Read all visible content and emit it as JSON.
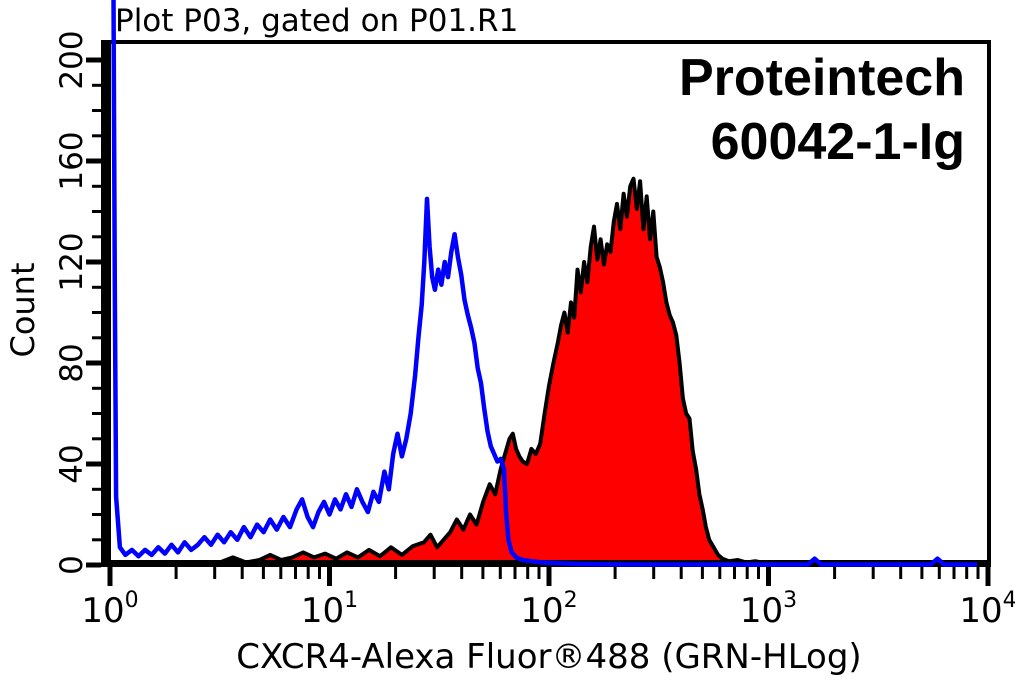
{
  "title": "Plot P03, gated on P01.R1",
  "annotation": {
    "line1": "Proteintech",
    "line2": "60042-1-Ig"
  },
  "chart_data": {
    "type": "area",
    "title": "Plot P03, gated on P01.R1",
    "xlabel": "CXCR4-Alexa Fluor®488 (GRN-HLog)",
    "ylabel": "Count",
    "x_scale": "log10",
    "xlim_log10": [
      0,
      4
    ],
    "ylim": [
      0,
      208
    ],
    "grid": "off",
    "legend": "none",
    "x_ticks": [
      {
        "base": "10",
        "exp": "0"
      },
      {
        "base": "10",
        "exp": "1"
      },
      {
        "base": "10",
        "exp": "2"
      },
      {
        "base": "10",
        "exp": "3"
      },
      {
        "base": "10",
        "exp": "4"
      }
    ],
    "y_ticks": [
      {
        "v": 0,
        "label": "0"
      },
      {
        "v": 40,
        "label": "40"
      },
      {
        "v": 80,
        "label": "80"
      },
      {
        "v": 120,
        "label": "120"
      },
      {
        "v": 160,
        "label": "160"
      },
      {
        "v": 200,
        "label": "200"
      }
    ],
    "y_minor_step": 10,
    "series": [
      {
        "name": "red_filled_histogram",
        "stroke": "#000000",
        "fill": "#ff0000",
        "points_log10x_count": [
          [
            0.0,
            0.3
          ],
          [
            0.15,
            0.3
          ],
          [
            0.3,
            0.8
          ],
          [
            0.42,
            0.5
          ],
          [
            0.5,
            1
          ],
          [
            0.56,
            3
          ],
          [
            0.62,
            1
          ],
          [
            0.68,
            2
          ],
          [
            0.73,
            4
          ],
          [
            0.78,
            2
          ],
          [
            0.83,
            3
          ],
          [
            0.88,
            5
          ],
          [
            0.93,
            3
          ],
          [
            0.98,
            4.5
          ],
          [
            1.03,
            2.5
          ],
          [
            1.08,
            5
          ],
          [
            1.13,
            3
          ],
          [
            1.18,
            6
          ],
          [
            1.23,
            3.5
          ],
          [
            1.28,
            7
          ],
          [
            1.33,
            4
          ],
          [
            1.38,
            7.5
          ],
          [
            1.43,
            9
          ],
          [
            1.46,
            12
          ],
          [
            1.49,
            7
          ],
          [
            1.52,
            10
          ],
          [
            1.55,
            13
          ],
          [
            1.58,
            18
          ],
          [
            1.61,
            14
          ],
          [
            1.64,
            20
          ],
          [
            1.67,
            16
          ],
          [
            1.7,
            25
          ],
          [
            1.73,
            32
          ],
          [
            1.755,
            28
          ],
          [
            1.78,
            38
          ],
          [
            1.8,
            44
          ],
          [
            1.82,
            50
          ],
          [
            1.835,
            52
          ],
          [
            1.85,
            46
          ],
          [
            1.865,
            43
          ],
          [
            1.88,
            41
          ],
          [
            1.9,
            40
          ],
          [
            1.92,
            46
          ],
          [
            1.94,
            44
          ],
          [
            1.96,
            48
          ],
          [
            1.98,
            60
          ],
          [
            2.0,
            71
          ],
          [
            2.02,
            80
          ],
          [
            2.04,
            88
          ],
          [
            2.055,
            95
          ],
          [
            2.07,
            100
          ],
          [
            2.085,
            92
          ],
          [
            2.1,
            104
          ],
          [
            2.115,
            98
          ],
          [
            2.13,
            117
          ],
          [
            2.145,
            108
          ],
          [
            2.16,
            120
          ],
          [
            2.175,
            112
          ],
          [
            2.19,
            126
          ],
          [
            2.205,
            134
          ],
          [
            2.22,
            121
          ],
          [
            2.235,
            129
          ],
          [
            2.25,
            119
          ],
          [
            2.265,
            127
          ],
          [
            2.28,
            124
          ],
          [
            2.295,
            136
          ],
          [
            2.31,
            143
          ],
          [
            2.325,
            133
          ],
          [
            2.34,
            147
          ],
          [
            2.355,
            138
          ],
          [
            2.37,
            150
          ],
          [
            2.385,
            153
          ],
          [
            2.4,
            141
          ],
          [
            2.415,
            152
          ],
          [
            2.43,
            133
          ],
          [
            2.445,
            146
          ],
          [
            2.46,
            129
          ],
          [
            2.475,
            140
          ],
          [
            2.49,
            122
          ],
          [
            2.505,
            118
          ],
          [
            2.52,
            112
          ],
          [
            2.535,
            104
          ],
          [
            2.55,
            99
          ],
          [
            2.565,
            96
          ],
          [
            2.58,
            91
          ],
          [
            2.595,
            80
          ],
          [
            2.61,
            66
          ],
          [
            2.625,
            60
          ],
          [
            2.64,
            58
          ],
          [
            2.655,
            45
          ],
          [
            2.67,
            38
          ],
          [
            2.685,
            28
          ],
          [
            2.7,
            22
          ],
          [
            2.715,
            15
          ],
          [
            2.73,
            10
          ],
          [
            2.75,
            7
          ],
          [
            2.77,
            4
          ],
          [
            2.79,
            2.5
          ],
          [
            2.82,
            1.5
          ],
          [
            2.86,
            2
          ],
          [
            2.9,
            1
          ],
          [
            2.94,
            1.5
          ],
          [
            2.98,
            0.8
          ],
          [
            3.02,
            0.3
          ],
          [
            3.1,
            0
          ],
          [
            3.5,
            0
          ],
          [
            4.0,
            0
          ]
        ]
      },
      {
        "name": "blue_open_histogram",
        "stroke": "#0000ff",
        "fill": "none",
        "points_log10x_count": [
          [
            0.004,
            226
          ],
          [
            0.016,
            226
          ],
          [
            0.022,
            110
          ],
          [
            0.028,
            27
          ],
          [
            0.045,
            7
          ],
          [
            0.07,
            4
          ],
          [
            0.1,
            6
          ],
          [
            0.13,
            3.5
          ],
          [
            0.16,
            6
          ],
          [
            0.19,
            4
          ],
          [
            0.22,
            7
          ],
          [
            0.25,
            4.5
          ],
          [
            0.28,
            8
          ],
          [
            0.31,
            5
          ],
          [
            0.34,
            9
          ],
          [
            0.37,
            6
          ],
          [
            0.4,
            8
          ],
          [
            0.43,
            11
          ],
          [
            0.46,
            8
          ],
          [
            0.49,
            12
          ],
          [
            0.52,
            9
          ],
          [
            0.55,
            13
          ],
          [
            0.58,
            10
          ],
          [
            0.61,
            15
          ],
          [
            0.64,
            11
          ],
          [
            0.67,
            16
          ],
          [
            0.7,
            13
          ],
          [
            0.73,
            18
          ],
          [
            0.76,
            14
          ],
          [
            0.79,
            19
          ],
          [
            0.82,
            15
          ],
          [
            0.85,
            22
          ],
          [
            0.875,
            26
          ],
          [
            0.9,
            19
          ],
          [
            0.925,
            15
          ],
          [
            0.95,
            21
          ],
          [
            0.975,
            25
          ],
          [
            1.0,
            20
          ],
          [
            1.025,
            26
          ],
          [
            1.05,
            22
          ],
          [
            1.075,
            28
          ],
          [
            1.1,
            23
          ],
          [
            1.125,
            30
          ],
          [
            1.15,
            25
          ],
          [
            1.175,
            21
          ],
          [
            1.2,
            29
          ],
          [
            1.225,
            25
          ],
          [
            1.25,
            37
          ],
          [
            1.27,
            30
          ],
          [
            1.29,
            44
          ],
          [
            1.31,
            52
          ],
          [
            1.33,
            43
          ],
          [
            1.35,
            50
          ],
          [
            1.37,
            60
          ],
          [
            1.39,
            75
          ],
          [
            1.405,
            90
          ],
          [
            1.42,
            103
          ],
          [
            1.432,
            120
          ],
          [
            1.444,
            145
          ],
          [
            1.456,
            126
          ],
          [
            1.468,
            114
          ],
          [
            1.48,
            109
          ],
          [
            1.495,
            117
          ],
          [
            1.51,
            111
          ],
          [
            1.525,
            120
          ],
          [
            1.54,
            114
          ],
          [
            1.555,
            124
          ],
          [
            1.57,
            131
          ],
          [
            1.585,
            122
          ],
          [
            1.6,
            115
          ],
          [
            1.615,
            105
          ],
          [
            1.63,
            99
          ],
          [
            1.645,
            94
          ],
          [
            1.66,
            88
          ],
          [
            1.675,
            78
          ],
          [
            1.69,
            72
          ],
          [
            1.705,
            62
          ],
          [
            1.72,
            53
          ],
          [
            1.735,
            47
          ],
          [
            1.75,
            44
          ],
          [
            1.765,
            41
          ],
          [
            1.78,
            42
          ],
          [
            1.795,
            38
          ],
          [
            1.805,
            20
          ],
          [
            1.815,
            10
          ],
          [
            1.83,
            5
          ],
          [
            1.85,
            3
          ],
          [
            1.88,
            2
          ],
          [
            1.92,
            1.5
          ],
          [
            1.97,
            1
          ],
          [
            2.02,
            0.8
          ],
          [
            2.1,
            0.5
          ],
          [
            2.2,
            0.3
          ],
          [
            2.4,
            0.2
          ],
          [
            3.18,
            0.2
          ],
          [
            3.21,
            2.5
          ],
          [
            3.24,
            0.2
          ],
          [
            3.74,
            0.2
          ],
          [
            3.77,
            2.5
          ],
          [
            3.8,
            0.2
          ],
          [
            3.95,
            0.2
          ]
        ]
      }
    ]
  },
  "colors": {
    "background": "#ffffff",
    "axes": "#000000",
    "blue_series": "#0000ff",
    "red_series_fill": "#ff0000",
    "red_series_outline": "#000000",
    "text": "#000000"
  }
}
